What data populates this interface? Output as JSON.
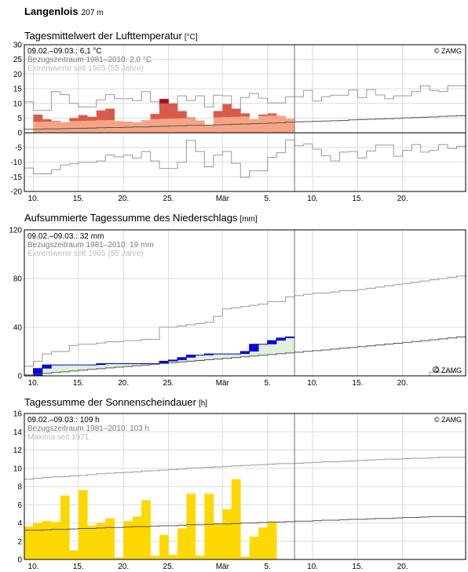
{
  "station": {
    "name": "Langenlois",
    "elevation": "207 m"
  },
  "colors": {
    "temp_fill": "#f5a585",
    "temp_above": "#d85a4c",
    "temp_max": "#a81020",
    "precip_bar": "#0000e0",
    "precip_area": "#dff0da",
    "precip_line": "#0000cc",
    "sun_bar": "#ffd800",
    "grid": "#dcdcdc",
    "ref_line": "#555555",
    "extreme_line": "#9a9a9a"
  },
  "x_axis": {
    "tick_labels": [
      "10.",
      "15.",
      "20.",
      "25.",
      "Mär",
      "5.",
      "10.",
      "15.",
      "20."
    ]
  },
  "chart_data": [
    {
      "type": "area",
      "title": "Tagesmittelwert der Lufttemperatur",
      "unit": "[°C]",
      "ylim": [
        -20,
        30
      ],
      "yticks": [
        -20,
        -15,
        -10,
        -5,
        0,
        5,
        10,
        15,
        20,
        25,
        30
      ],
      "grid": true,
      "legend": {
        "period": "09.02.–09.03.: 6,1 °C",
        "reference": "Bezugszeitraum 1981–2010: 2,0 °C",
        "extreme": "Extremwerte seit 1965 (55 Jahre)"
      },
      "credit": "© ZAMG",
      "values": [
        6.2,
        4.6,
        4.0,
        3.6,
        5.0,
        6.0,
        5.4,
        7.6,
        8.2,
        4.0,
        3.8,
        3.6,
        4.3,
        6.4,
        11.5,
        10.0,
        7.4,
        5.2,
        4.2,
        2.6,
        7.4,
        9.8,
        8.2,
        6.6,
        4.6,
        6.2,
        6.6,
        5.8,
        4.8
      ],
      "reference": [
        1.2,
        1.2,
        1.3,
        1.3,
        1.4,
        1.5,
        1.5,
        1.6,
        1.7,
        1.8,
        1.8,
        1.9,
        2.0,
        2.0,
        2.1,
        2.2,
        2.3,
        2.4,
        2.5,
        2.5,
        2.6,
        2.7,
        2.8,
        2.9,
        3.0,
        3.1,
        3.2,
        3.3,
        3.4,
        3.6,
        3.7,
        3.8,
        3.9,
        4.0,
        4.1,
        4.2,
        4.4,
        4.5,
        4.6,
        4.7,
        4.8,
        4.9,
        5.1,
        5.2,
        5.3,
        5.4,
        5.6,
        5.7,
        5.8
      ],
      "extreme_max": [
        10.5,
        7.6,
        7.6,
        14.0,
        13.0,
        10.0,
        8.8,
        8.8,
        11.2,
        13.0,
        11.6,
        11.6,
        11.0,
        14.0,
        10.5,
        8.8,
        8.8,
        12.6,
        11.0,
        12.6,
        8.8,
        12.8,
        12.6,
        7.4,
        12.0,
        13.4,
        11.8,
        10.2,
        10.2,
        12.3,
        12.3,
        14.4,
        10.8,
        12.3,
        12.8,
        12.8,
        14.6,
        12.0,
        14.7,
        12.9,
        11.6,
        12.6,
        12.6,
        14.0,
        16.0,
        14.4,
        14.0,
        16.0,
        16.0
      ],
      "extreme_min": [
        -12.0,
        -14.0,
        -14.0,
        -12.6,
        -11.0,
        -10.6,
        -10.0,
        -10.0,
        -9.6,
        -7.6,
        -8.2,
        -7.6,
        -8.6,
        -6.4,
        -9.6,
        -12.2,
        -12.2,
        -10.0,
        -2.6,
        -6.4,
        -11.6,
        -7.6,
        -6.4,
        -10.4,
        -15.2,
        -13.0,
        -13.0,
        -8.4,
        -6.8,
        -2.4,
        -4.4,
        -3.8,
        -5.6,
        -7.8,
        -9.6,
        -6.6,
        -6.4,
        -8.6,
        -6.2,
        -4.2,
        -4.2,
        -8.0,
        -6.0,
        -4.0,
        -6.6,
        -6.0,
        -4.0,
        -5.4,
        -4.6
      ]
    },
    {
      "type": "area",
      "title": "Aufsummierte Tagessumme des Niederschlags",
      "unit": "[mm]",
      "ylim": [
        0,
        120
      ],
      "yticks": [
        0,
        40,
        80,
        120
      ],
      "grid": true,
      "legend": {
        "period": "09.02.–09.03.: 32 mm",
        "reference": "Bezugszeitraum 1981–2010: 19 mm",
        "extreme": "Extremwerte seit 1965 (55 Jahre)"
      },
      "credit": "© ZAMG",
      "values": [
        0,
        6,
        9,
        9,
        9,
        9,
        9,
        9,
        10,
        10,
        10,
        10,
        10,
        10,
        10,
        12,
        13,
        15,
        17,
        17,
        18,
        18,
        18,
        18,
        20,
        26,
        26,
        29,
        31,
        32
      ],
      "reference": [
        0.7,
        1.4,
        2.0,
        2.7,
        3.3,
        4.0,
        4.6,
        5.3,
        5.9,
        6.5,
        7.1,
        7.7,
        8.3,
        8.9,
        9.5,
        10.1,
        10.8,
        11.4,
        12.0,
        12.6,
        13.2,
        13.8,
        14.4,
        15.0,
        15.7,
        16.3,
        16.9,
        17.5,
        18.2,
        18.8,
        19.4,
        20.1,
        20.7,
        21.3,
        22.0,
        22.7,
        23.3,
        24.0,
        24.7,
        25.4,
        26.1,
        26.8,
        27.5,
        28.2,
        28.9,
        29.7,
        30.4,
        31.2,
        32.0
      ],
      "extreme_max": [
        8,
        12,
        18,
        20,
        20,
        25,
        26,
        26,
        27,
        28,
        28,
        29,
        29,
        30,
        30,
        40,
        40,
        41,
        42,
        43,
        44,
        49,
        55,
        56,
        57,
        58,
        59,
        61,
        61,
        65,
        66,
        67,
        68,
        68,
        69,
        70,
        70,
        71,
        72,
        73,
        74,
        75,
        76,
        77,
        78,
        79,
        80,
        81,
        82
      ],
      "extreme_min": [
        0,
        0,
        0,
        0,
        0,
        0,
        0,
        0,
        0,
        0,
        0,
        0,
        0,
        0,
        0,
        0,
        0,
        0,
        0,
        0,
        0,
        0,
        0,
        0,
        0,
        0,
        0,
        0,
        0,
        0,
        0,
        0,
        0,
        0,
        0,
        0,
        0,
        0,
        0,
        0,
        0,
        0,
        0,
        0,
        0,
        3,
        3,
        3,
        3
      ]
    },
    {
      "type": "bar",
      "title": "Tagessumme der Sonnenscheindauer",
      "unit": "[h]",
      "ylim": [
        0,
        16
      ],
      "yticks": [
        0,
        2,
        4,
        6,
        8,
        10,
        12,
        14,
        16
      ],
      "grid": true,
      "legend": {
        "period": "09.02.–09.03.: 109 h",
        "reference": "Bezugszeitraum 1981–2010: 103 h",
        "extreme": "Maxima seit 1971"
      },
      "credit": "© ZAMG",
      "values": [
        3.6,
        4.0,
        4.2,
        4.1,
        7.0,
        1.0,
        7.6,
        3.7,
        4.0,
        4.5,
        0.2,
        4.2,
        4.7,
        6.5,
        0.4,
        2.7,
        0.5,
        3.4,
        7.2,
        0.4,
        7.2,
        3.9,
        5.5,
        8.8,
        0.3,
        2.5,
        3.5,
        4.1
      ],
      "reference": [
        3.2,
        3.2,
        3.25,
        3.3,
        3.3,
        3.35,
        3.4,
        3.4,
        3.45,
        3.5,
        3.5,
        3.55,
        3.6,
        3.6,
        3.65,
        3.7,
        3.7,
        3.75,
        3.8,
        3.8,
        3.85,
        3.9,
        3.9,
        3.95,
        4.0,
        4.0,
        4.05,
        4.1,
        4.1,
        4.15,
        4.2,
        4.2,
        4.25,
        4.3,
        4.3,
        4.35,
        4.4,
        4.4,
        4.45,
        4.5,
        4.5,
        4.55,
        4.6,
        4.6,
        4.65,
        4.7,
        4.7,
        4.7,
        4.7
      ],
      "extreme_max": [
        8.8,
        8.9,
        9.0,
        9.05,
        9.1,
        9.15,
        9.2,
        9.3,
        9.4,
        9.45,
        9.5,
        9.55,
        9.6,
        9.7,
        9.75,
        9.8,
        9.85,
        9.9,
        10.0,
        10.05,
        10.1,
        10.15,
        10.2,
        10.25,
        10.3,
        10.35,
        10.4,
        10.45,
        10.5,
        10.5,
        10.55,
        10.6,
        10.65,
        10.7,
        10.7,
        10.75,
        10.8,
        10.85,
        10.9,
        10.95,
        11.0,
        11.0,
        11.05,
        11.1,
        11.1,
        11.15,
        11.2,
        11.2,
        11.2
      ]
    }
  ]
}
